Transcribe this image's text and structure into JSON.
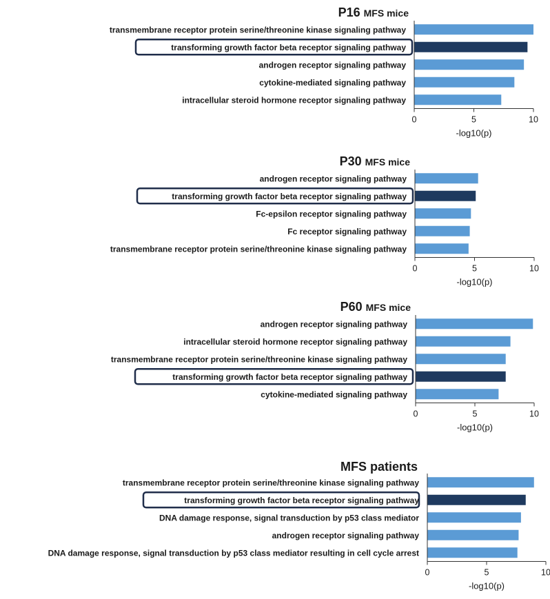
{
  "chart_data": [
    {
      "type": "bar",
      "orientation": "horizontal",
      "title": "P16",
      "title_suffix": "MFS mice",
      "xlabel": "-log10(p)",
      "xlim": [
        0,
        10
      ],
      "xticks": [
        "0",
        "5",
        "10"
      ],
      "categories": [
        "transmembrane receptor protein serine/threonine kinase signaling pathway",
        "transforming growth factor beta receptor signaling pathway",
        "androgen receptor signaling pathway",
        "cytokine-mediated signaling pathway",
        "intracellular steroid hormone receptor signaling pathway"
      ],
      "values": [
        10.0,
        9.5,
        9.2,
        8.4,
        7.3
      ],
      "highlight_index": 1
    },
    {
      "type": "bar",
      "orientation": "horizontal",
      "title": "P30",
      "title_suffix": "MFS mice",
      "xlabel": "-log10(p)",
      "xlim": [
        0,
        10
      ],
      "xticks": [
        "0",
        "5",
        "10"
      ],
      "categories": [
        "androgen receptor signaling pathway",
        "transforming growth factor beta receptor signaling pathway",
        "Fc-epsilon receptor signaling pathway",
        "Fc receptor signaling pathway",
        "transmembrane receptor protein serine/threonine kinase signaling pathway"
      ],
      "values": [
        5.3,
        5.1,
        4.7,
        4.6,
        4.5
      ],
      "highlight_index": 1
    },
    {
      "type": "bar",
      "orientation": "horizontal",
      "title": "P60",
      "title_suffix": "MFS mice",
      "xlabel": "-log10(p)",
      "xlim": [
        0,
        10
      ],
      "xticks": [
        "0",
        "5",
        "10"
      ],
      "categories": [
        "androgen receptor signaling pathway",
        "intracellular steroid hormone receptor signaling pathway",
        "transmembrane receptor protein serine/threonine kinase signaling pathway",
        "transforming growth factor beta receptor signaling pathway",
        "cytokine-mediated signaling pathway"
      ],
      "values": [
        9.9,
        8.0,
        7.6,
        7.6,
        7.0
      ],
      "highlight_index": 3
    },
    {
      "type": "bar",
      "orientation": "horizontal",
      "title": "MFS patients",
      "title_suffix": "",
      "xlabel": "-log10(p)",
      "xlim": [
        0,
        10
      ],
      "xticks": [
        "0",
        "5",
        "10"
      ],
      "categories": [
        "transmembrane receptor protein serine/threonine kinase signaling pathway",
        "transforming growth factor beta receptor signaling pathway",
        "DNA damage response, signal transduction by p53 class mediator",
        "androgen receptor signaling pathway",
        "DNA damage response, signal transduction by p53 class mediator resulting in cell cycle arrest"
      ],
      "values": [
        9.0,
        8.3,
        7.9,
        7.7,
        7.6
      ],
      "highlight_index": 1
    }
  ],
  "colors": {
    "bar": "#5b9bd5",
    "highlight_bar": "#1f3a5f",
    "highlight_frame": "#1f2d4a",
    "axis": "#333333",
    "text": "#1a1a1a"
  }
}
